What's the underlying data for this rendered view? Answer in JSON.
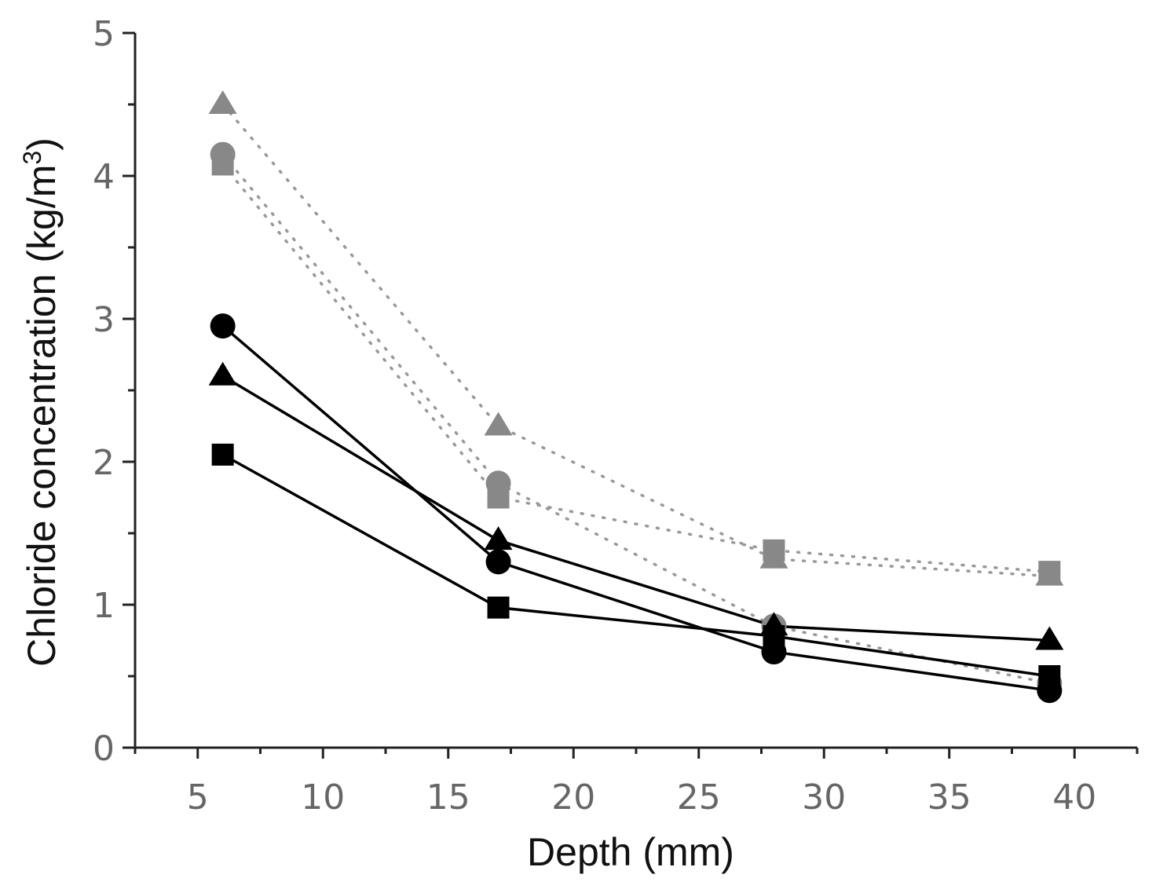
{
  "chart_data": {
    "type": "line",
    "title": "",
    "xlabel": "Depth (mm)",
    "ylabel": "Chloride concentration (kg/m",
    "ylabel_superscript": "3",
    "ylabel_close": ")",
    "xlim": [
      2.5,
      42.5
    ],
    "ylim": [
      0,
      5
    ],
    "x_ticks": [
      5,
      10,
      15,
      20,
      25,
      30,
      35,
      40
    ],
    "x_tick_labels": [
      "5",
      "10",
      "15",
      "20",
      "25",
      "30",
      "35",
      "40"
    ],
    "y_ticks": [
      0,
      1,
      2,
      3,
      4,
      5
    ],
    "y_tick_labels": [
      "0",
      "1",
      "2",
      "3",
      "4",
      "5"
    ],
    "x_minor_step": 2.5,
    "y_minor_step": 0.5,
    "x": [
      6,
      17,
      28,
      39
    ],
    "series": [
      {
        "name": "gray triangle",
        "marker": "triangle",
        "color": "#888888",
        "dash": "dotted",
        "values": [
          4.5,
          2.25,
          1.32,
          1.2
        ]
      },
      {
        "name": "gray circle",
        "marker": "circle",
        "color": "#888888",
        "dash": "dotted",
        "values": [
          4.15,
          1.85,
          0.85,
          0.45
        ]
      },
      {
        "name": "gray square",
        "marker": "square",
        "color": "#888888",
        "dash": "dotted",
        "values": [
          4.08,
          1.75,
          1.38,
          1.23
        ]
      },
      {
        "name": "black circle",
        "marker": "circle",
        "color": "#000000",
        "dash": "solid",
        "values": [
          2.95,
          1.3,
          0.67,
          0.4
        ]
      },
      {
        "name": "black triangle",
        "marker": "triangle",
        "color": "#000000",
        "dash": "solid",
        "values": [
          2.6,
          1.45,
          0.85,
          0.75
        ]
      },
      {
        "name": "black square",
        "marker": "square",
        "color": "#000000",
        "dash": "solid",
        "values": [
          2.05,
          0.98,
          0.78,
          0.5
        ]
      }
    ]
  }
}
